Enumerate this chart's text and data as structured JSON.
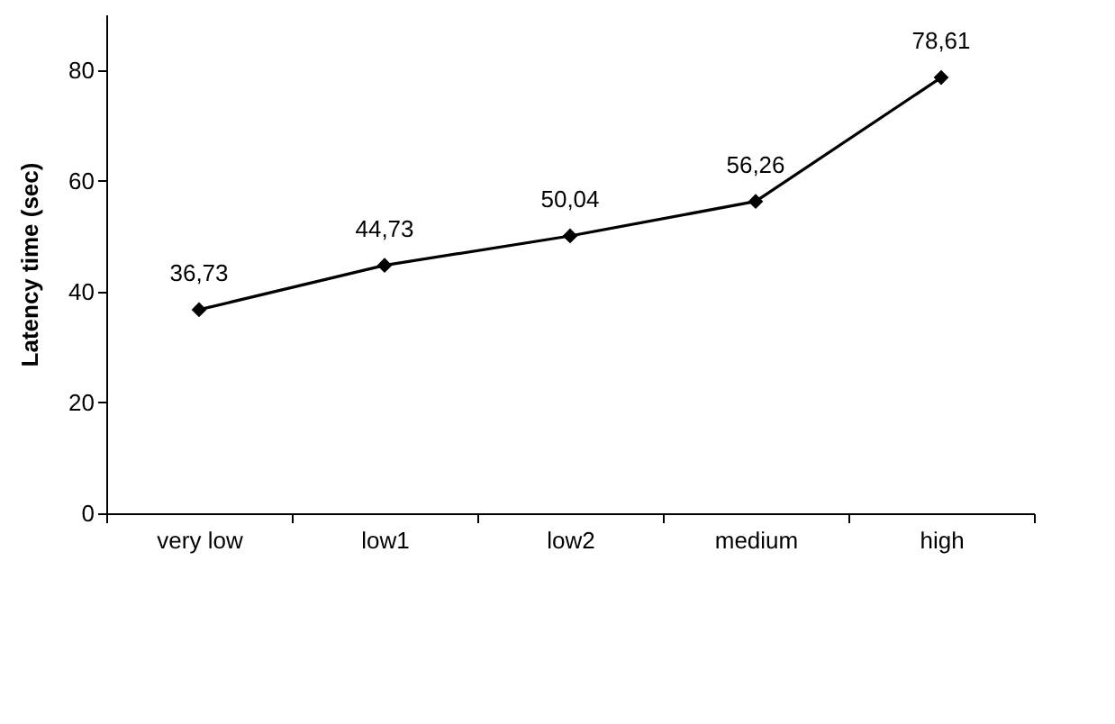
{
  "chart_data": {
    "type": "line",
    "ylabel": "Latency time (sec)",
    "categories": [
      "very low",
      "low1",
      "low2",
      "medium",
      "high"
    ],
    "series": [
      {
        "color": "#000000",
        "values": [
          36.73,
          44.73,
          50.04,
          56.26,
          78.61
        ],
        "value_labels": [
          "36,73",
          "44,73",
          "50,04",
          "56,26",
          "78,61"
        ]
      }
    ],
    "ylim": [
      0,
      90
    ],
    "yticks": [
      0,
      20,
      40,
      60,
      80
    ],
    "grid": false,
    "marker": "diamond",
    "line_style": "solid"
  }
}
